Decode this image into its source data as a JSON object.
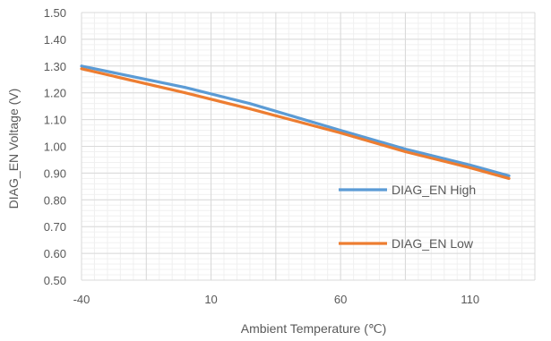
{
  "chart_data": {
    "type": "line",
    "title": "",
    "xlabel": "Ambient Temperature (℃)",
    "ylabel": "DIAG_EN Voltage (V)",
    "xlim": [
      -40,
      135
    ],
    "ylim": [
      0.5,
      1.5
    ],
    "x_ticks": [
      -40,
      10,
      60,
      110
    ],
    "x_tick_labels": [
      "-40",
      "10",
      "60",
      "110"
    ],
    "y_ticks": [
      0.5,
      0.6,
      0.7,
      0.8,
      0.9,
      1.0,
      1.1,
      1.2,
      1.3,
      1.4,
      1.5
    ],
    "y_tick_labels": [
      "0.50",
      "0.60",
      "0.70",
      "0.80",
      "0.90",
      "1.00",
      "1.10",
      "1.20",
      "1.30",
      "1.40",
      "1.50"
    ],
    "grid": true,
    "legend_position": "right",
    "series": [
      {
        "name": "DIAG_EN High",
        "color": "#5B9BD5",
        "x": [
          -40,
          0,
          25,
          60,
          85,
          110,
          125
        ],
        "y": [
          1.3,
          1.22,
          1.16,
          1.06,
          0.99,
          0.93,
          0.89
        ]
      },
      {
        "name": "DIAG_EN Low",
        "color": "#ED7D31",
        "x": [
          -40,
          0,
          25,
          60,
          85,
          110,
          125
        ],
        "y": [
          1.29,
          1.2,
          1.14,
          1.05,
          0.98,
          0.92,
          0.88
        ]
      }
    ]
  }
}
